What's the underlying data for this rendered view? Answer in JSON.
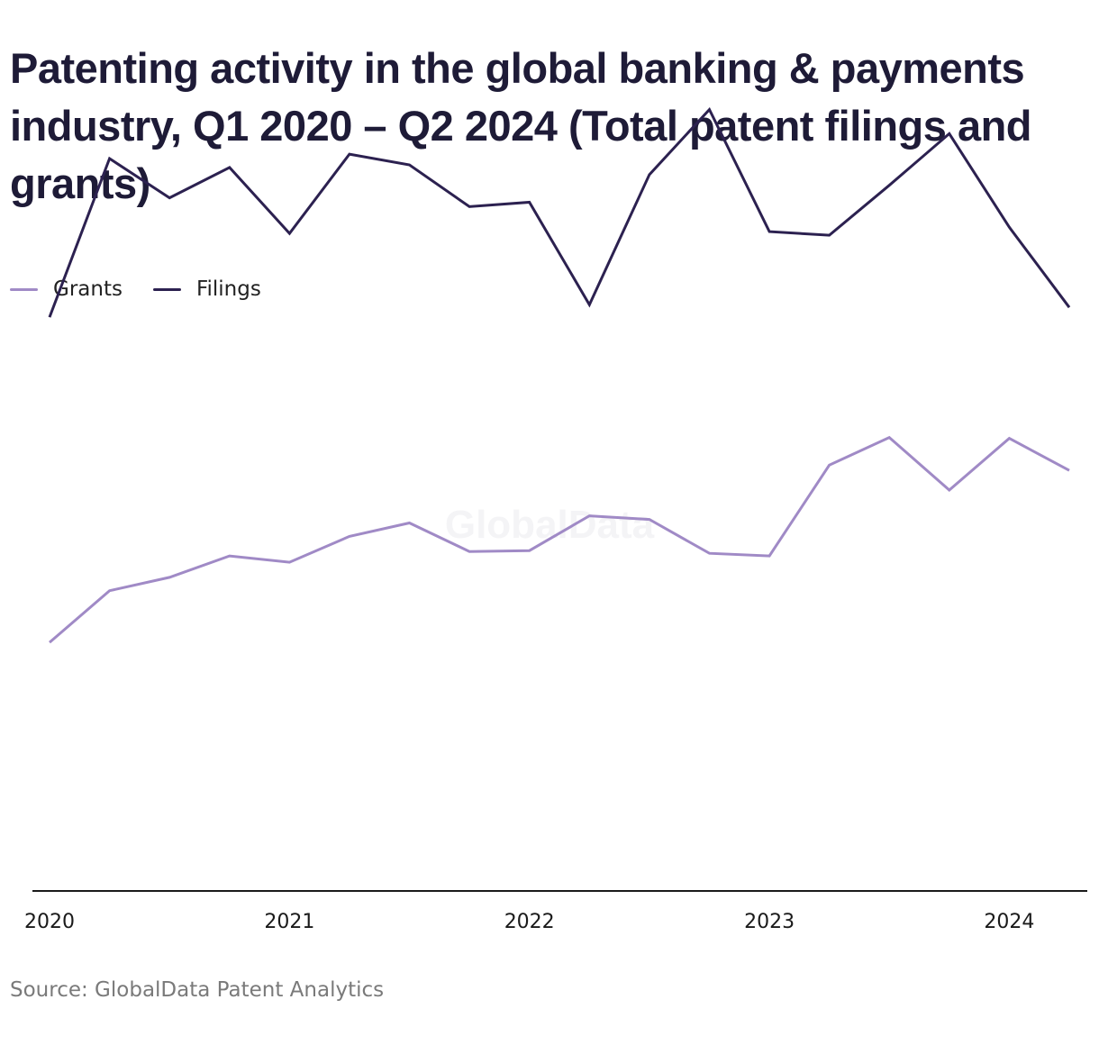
{
  "title": "Patenting activity in the global banking & payments industry, Q1 2020 – Q2 2024 (Total patent filings and grants)",
  "watermark": "GlobalData",
  "source": "Source: GlobalData Patent Analytics",
  "legend": [
    {
      "name": "Grants",
      "color": "#a08ac6"
    },
    {
      "name": "Filings",
      "color": "#2c2150"
    }
  ],
  "chart_data": {
    "type": "line",
    "x": [
      "2020 Q1",
      "2020 Q2",
      "2020 Q3",
      "2020 Q4",
      "2021 Q1",
      "2021 Q2",
      "2021 Q3",
      "2021 Q4",
      "2022 Q1",
      "2022 Q2",
      "2022 Q3",
      "2022 Q4",
      "2023 Q1",
      "2023 Q2",
      "2023 Q3",
      "2023 Q4",
      "2024 Q1",
      "2024 Q2"
    ],
    "x_tick_labels": [
      "2020",
      "2021",
      "2022",
      "2023",
      "2024"
    ],
    "ylim": [
      0,
      1000
    ],
    "grid": false,
    "legend_position": "top-left",
    "series": [
      {
        "name": "Grants",
        "color": "#a08ac6",
        "values": [
          279,
          337,
          352,
          376,
          369,
          398,
          413,
          381,
          382,
          421,
          417,
          379,
          376,
          478,
          509,
          450,
          508,
          472
        ]
      },
      {
        "name": "Filings",
        "color": "#2c2150",
        "values": [
          644,
          822,
          778,
          812,
          738,
          827,
          815,
          768,
          773,
          658,
          804,
          877,
          740,
          736,
          792,
          850,
          745,
          655
        ]
      }
    ]
  }
}
